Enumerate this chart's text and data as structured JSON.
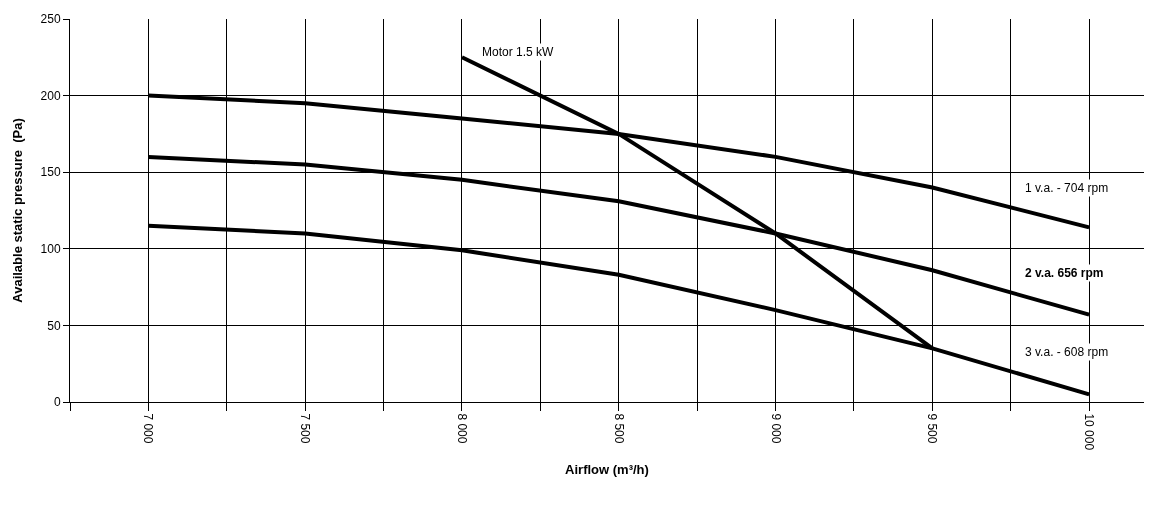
{
  "chart_data": {
    "type": "line",
    "xlabel": "Airflow (m³/h)",
    "ylabel": "Available static pressure  (Pa)",
    "x": [
      7000,
      7500,
      8000,
      8500,
      9000,
      9500,
      10000
    ],
    "series": [
      {
        "name": "1 v.a. - 704 rpm",
        "color": "#000000",
        "values": [
          200,
          195,
          185,
          175,
          160,
          140,
          114
        ]
      },
      {
        "name": "2 v.a. 656 rpm",
        "color": "#000000",
        "values": [
          160,
          155,
          145,
          131,
          110,
          86,
          57
        ]
      },
      {
        "name": "3 v.a. - 608 rpm",
        "color": "#000000",
        "values": [
          115,
          110,
          99,
          83,
          60,
          35,
          5
        ]
      },
      {
        "name": "Motor 1.5 kW",
        "color": "#000000",
        "values": [
          null,
          null,
          225,
          175,
          110,
          35,
          null
        ]
      }
    ],
    "xlim": [
      6750,
      10175
    ],
    "xticks": [
      {
        "value": 6750,
        "label": null
      },
      {
        "value": 7000,
        "label": "7 000"
      },
      {
        "value": 7250,
        "label": null
      },
      {
        "value": 7500,
        "label": "7 500"
      },
      {
        "value": 7750,
        "label": null
      },
      {
        "value": 8000,
        "label": "8 000"
      },
      {
        "value": 8250,
        "label": null
      },
      {
        "value": 8500,
        "label": "8 500"
      },
      {
        "value": 8750,
        "label": null
      },
      {
        "value": 9000,
        "label": "9 000"
      },
      {
        "value": 9250,
        "label": null
      },
      {
        "value": 9500,
        "label": "9 500"
      },
      {
        "value": 9750,
        "label": null
      },
      {
        "value": 10000,
        "label": "10 000"
      }
    ],
    "ylim": [
      0,
      250
    ],
    "yticks": [
      0,
      50,
      100,
      150,
      200,
      250
    ],
    "grid": true,
    "legend": false,
    "marker": "none",
    "line_style": "solid"
  }
}
